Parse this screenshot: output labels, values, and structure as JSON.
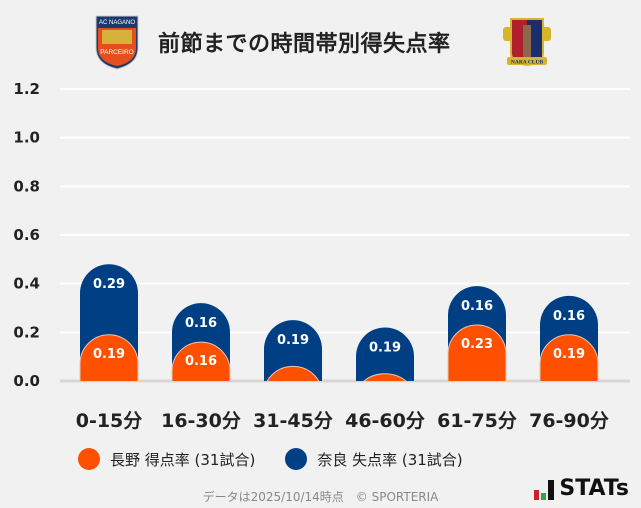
{
  "header": {
    "title": "前節までの時間帯別得失点率",
    "home_logo_text": "AC NAGANO PARCEIRO",
    "away_logo_text": "NARA CLUB"
  },
  "chart_data": {
    "type": "bar",
    "stacked": true,
    "categories": [
      "0-15分",
      "16-30分",
      "31-45分",
      "46-60分",
      "61-75分",
      "76-90分"
    ],
    "series": [
      {
        "name": "長野 得点率 (31試合)",
        "color": "#ff5000",
        "values": [
          0.19,
          0.16,
          0.06,
          0.03,
          0.23,
          0.19
        ],
        "labels": [
          "0.19",
          "0.16",
          "",
          "",
          "0.23",
          "0.19"
        ]
      },
      {
        "name": "奈良 失点率 (31試合)",
        "color": "#003f84",
        "values": [
          0.29,
          0.16,
          0.19,
          0.19,
          0.16,
          0.16
        ],
        "labels": [
          "0.29",
          "0.16",
          "0.19",
          "0.19",
          "0.16",
          "0.16"
        ]
      }
    ],
    "yticks": [
      "0.0",
      "0.2",
      "0.4",
      "0.6",
      "0.8",
      "1.0",
      "1.2"
    ],
    "ylim": [
      0,
      1.2
    ],
    "grid": true,
    "legend": "bottom"
  },
  "footer": {
    "note": "データは2025/10/14時点　© SPORTERIA",
    "brand": "STATs"
  }
}
